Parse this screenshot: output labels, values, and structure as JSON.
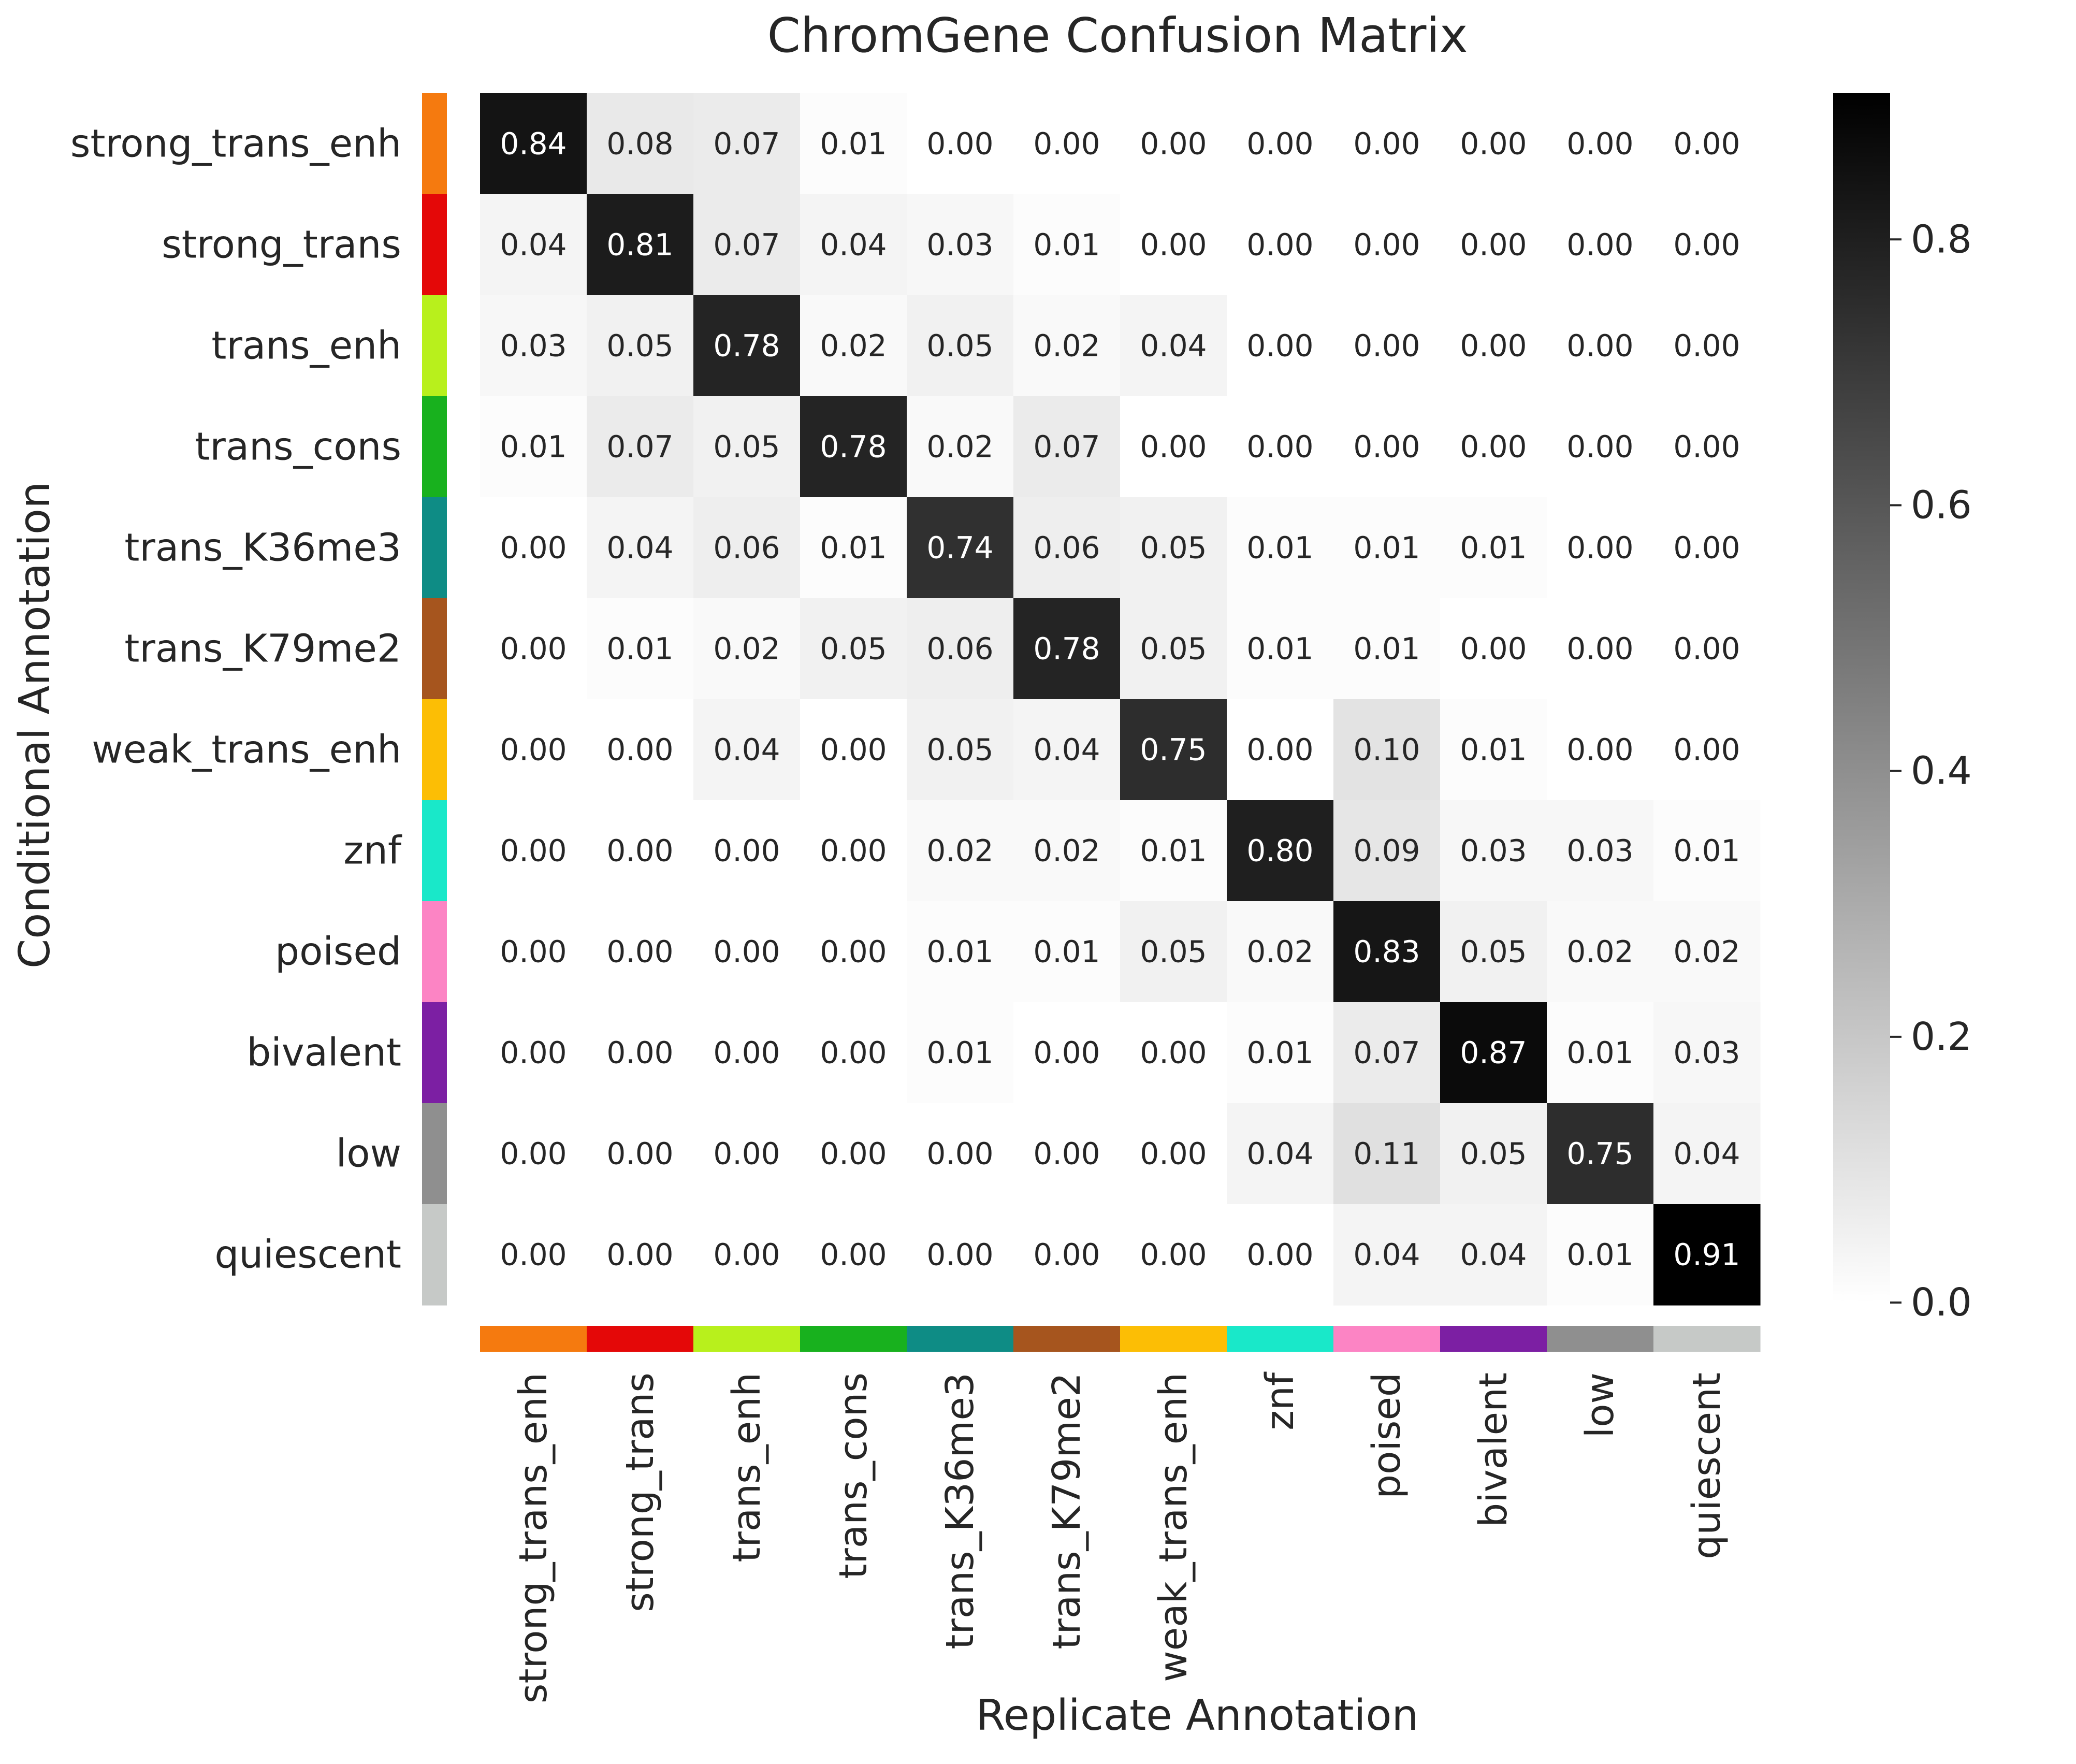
{
  "chart_data": {
    "type": "heatmap",
    "title": "ChromGene Confusion Matrix",
    "xlabel": "Replicate Annotation",
    "ylabel": "Conditional Annotation",
    "categories": [
      "strong_trans_enh",
      "strong_trans",
      "trans_enh",
      "trans_cons",
      "trans_K36me3",
      "trans_K79me2",
      "weak_trans_enh",
      "znf",
      "poised",
      "bivalent",
      "low",
      "quiescent"
    ],
    "category_colors": [
      "#f57a0f",
      "#e40808",
      "#b8f01c",
      "#18b11e",
      "#0e8c85",
      "#a6551e",
      "#fcbe05",
      "#19e8c9",
      "#fc84c4",
      "#7c1fa3",
      "#8f8f8f",
      "#c6c9c7"
    ],
    "values": [
      [
        0.84,
        0.08,
        0.07,
        0.01,
        0.0,
        0.0,
        0.0,
        0.0,
        0.0,
        0.0,
        0.0,
        0.0
      ],
      [
        0.04,
        0.81,
        0.07,
        0.04,
        0.03,
        0.01,
        0.0,
        0.0,
        0.0,
        0.0,
        0.0,
        0.0
      ],
      [
        0.03,
        0.05,
        0.78,
        0.02,
        0.05,
        0.02,
        0.04,
        0.0,
        0.0,
        0.0,
        0.0,
        0.0
      ],
      [
        0.01,
        0.07,
        0.05,
        0.78,
        0.02,
        0.07,
        0.0,
        0.0,
        0.0,
        0.0,
        0.0,
        0.0
      ],
      [
        0.0,
        0.04,
        0.06,
        0.01,
        0.74,
        0.06,
        0.05,
        0.01,
        0.01,
        0.01,
        0.0,
        0.0
      ],
      [
        0.0,
        0.01,
        0.02,
        0.05,
        0.06,
        0.78,
        0.05,
        0.01,
        0.01,
        0.0,
        0.0,
        0.0
      ],
      [
        0.0,
        0.0,
        0.04,
        0.0,
        0.05,
        0.04,
        0.75,
        0.0,
        0.1,
        0.01,
        0.0,
        0.0
      ],
      [
        0.0,
        0.0,
        0.0,
        0.0,
        0.02,
        0.02,
        0.01,
        0.8,
        0.09,
        0.03,
        0.03,
        0.01
      ],
      [
        0.0,
        0.0,
        0.0,
        0.0,
        0.01,
        0.01,
        0.05,
        0.02,
        0.83,
        0.05,
        0.02,
        0.02
      ],
      [
        0.0,
        0.0,
        0.0,
        0.0,
        0.01,
        0.0,
        0.0,
        0.01,
        0.07,
        0.87,
        0.01,
        0.03
      ],
      [
        0.0,
        0.0,
        0.0,
        0.0,
        0.0,
        0.0,
        0.0,
        0.04,
        0.11,
        0.05,
        0.75,
        0.04
      ],
      [
        0.0,
        0.0,
        0.0,
        0.0,
        0.0,
        0.0,
        0.0,
        0.0,
        0.04,
        0.04,
        0.01,
        0.91
      ]
    ],
    "colorbar": {
      "range": [
        0,
        0.91
      ],
      "ticks": [
        0.0,
        0.2,
        0.4,
        0.6,
        0.8
      ],
      "tick_labels": [
        "0.0",
        "0.2",
        "0.4",
        "0.6",
        "0.8"
      ],
      "colormap": "white-to-black"
    },
    "grid": false
  }
}
